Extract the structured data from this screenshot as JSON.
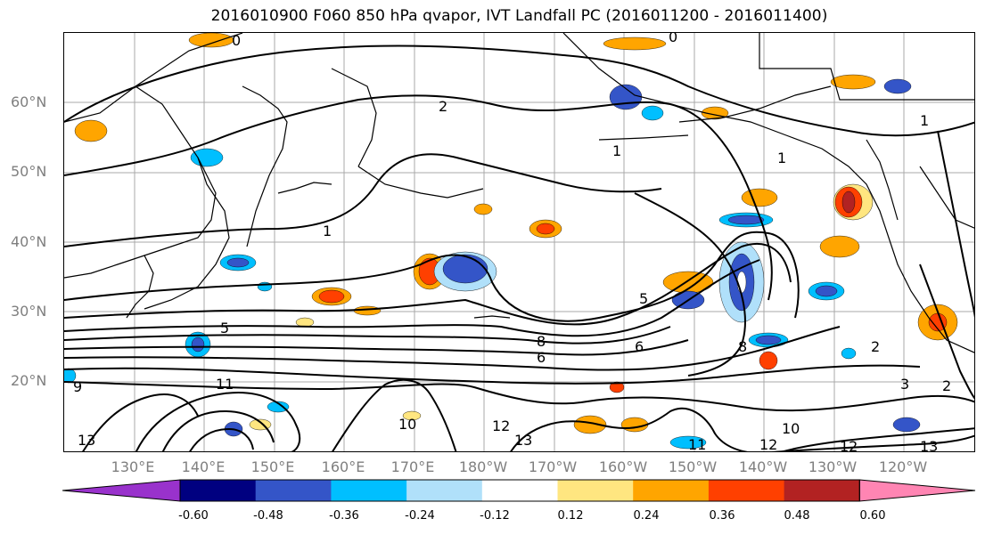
{
  "title": "2016010900 F060 850 hPa qvapor, IVT Landfall PC (2016011200 - 2016011400)",
  "lat_labels": [
    "60°N",
    "50°N",
    "40°N",
    "30°N",
    "20°N"
  ],
  "lon_labels": [
    "130°E",
    "140°E",
    "150°E",
    "160°E",
    "170°E",
    "180°W",
    "170°W",
    "160°W",
    "150°W",
    "140°W",
    "130°W",
    "120°W"
  ],
  "contour_labels": [
    "0",
    "0",
    "2",
    "1",
    "1",
    "1",
    "5",
    "5",
    "8",
    "8",
    "6",
    "6",
    "10",
    "11",
    "12",
    "13",
    "13",
    "12",
    "9",
    "11",
    "10",
    "12",
    "13",
    "2",
    "3",
    "2",
    "1"
  ],
  "colorbar": {
    "ticks": [
      "-0.60",
      "-0.48",
      "-0.36",
      "-0.24",
      "-0.12",
      "0.12",
      "0.24",
      "0.36",
      "0.48",
      "0.60"
    ],
    "colors": [
      "#9932cc",
      "#000080",
      "#3455c8",
      "#00bfff",
      "#b0e0fa",
      "#ffffff",
      "#ffe680",
      "#ffa500",
      "#ff4000",
      "#b22222",
      "#ff85b3"
    ]
  },
  "colors": {
    "negative_strong": "#3455c8",
    "negative_mid": "#00bfff",
    "negative_light": "#b0e0fa",
    "positive_light": "#ffe680",
    "positive_mid": "#ffa500",
    "positive_strong": "#ff4000",
    "positive_max": "#b22222",
    "contour": "#000000",
    "grid": "#a9a9a9",
    "coast": "#000000"
  }
}
